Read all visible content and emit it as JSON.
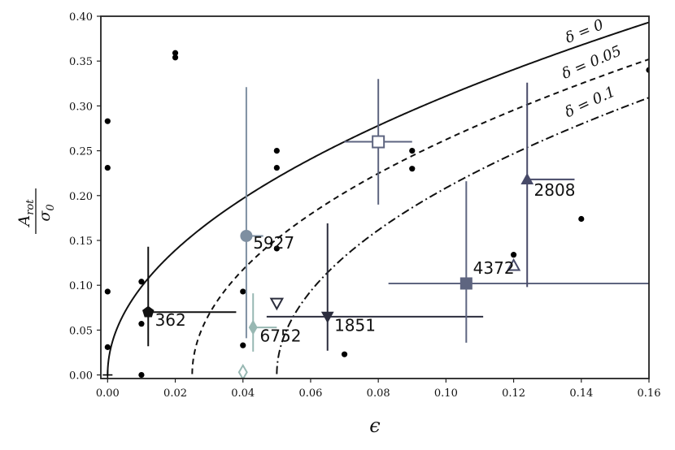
{
  "chart_data": {
    "type": "scatter",
    "xlabel": "ϵ",
    "ylabel_num": "A",
    "ylabel_num_sub": "rot",
    "ylabel_den": "σ",
    "ylabel_den_sub": "0",
    "xlim": [
      -0.002,
      0.16
    ],
    "ylim": [
      -0.004,
      0.4
    ],
    "x_ticks": [
      0.0,
      0.02,
      0.04,
      0.06,
      0.08,
      0.1,
      0.12,
      0.14,
      0.16
    ],
    "x_tick_labels": [
      "0.00",
      "0.02",
      "0.04",
      "0.06",
      "0.08",
      "0.10",
      "0.12",
      "0.14",
      "0.16"
    ],
    "y_ticks": [
      0.0,
      0.05,
      0.1,
      0.15,
      0.2,
      0.25,
      0.3,
      0.35,
      0.4
    ],
    "y_tick_labels": [
      "0.00",
      "0.05",
      "0.10",
      "0.15",
      "0.20",
      "0.25",
      "0.30",
      "0.35",
      "0.40"
    ],
    "grid": false,
    "curves": [
      {
        "label": "δ = 0",
        "delta": 0,
        "style": "solid"
      },
      {
        "label": "δ = 0.05",
        "delta": 0.05,
        "style": "dashed"
      },
      {
        "label": "δ = 0.1",
        "delta": 0.1,
        "style": "dashdot"
      }
    ],
    "scatter_points": [
      [
        0.0,
        0.283
      ],
      [
        0.0,
        0.231
      ],
      [
        0.0,
        0.093
      ],
      [
        0.0,
        0.031
      ],
      [
        0.01,
        0.104
      ],
      [
        0.01,
        0.057
      ],
      [
        0.01,
        0.0
      ],
      [
        0.02,
        0.359
      ],
      [
        0.02,
        0.354
      ],
      [
        0.04,
        0.093
      ],
      [
        0.04,
        0.033
      ],
      [
        0.05,
        0.25
      ],
      [
        0.05,
        0.231
      ],
      [
        0.05,
        0.141
      ],
      [
        0.07,
        0.023
      ],
      [
        0.09,
        0.25
      ],
      [
        0.09,
        0.23
      ],
      [
        0.12,
        0.134
      ],
      [
        0.14,
        0.174
      ],
      [
        0.16,
        0.34
      ]
    ],
    "plus_markers": [
      [
        0.0,
        0.0
      ]
    ],
    "labeled_points": [
      {
        "label": "362",
        "x": 0.012,
        "y": 0.07,
        "marker": "pentagon",
        "color": "#111111",
        "xerr": [
          0.0,
          0.026
        ],
        "yerr": [
          0.038,
          0.073
        ],
        "label_at": [
          0.014,
          0.055
        ]
      },
      {
        "label": "5927",
        "x": 0.041,
        "y": 0.155,
        "marker": "circle",
        "color": "#7e8fa1",
        "xerr": [
          0.0,
          0.005
        ],
        "yerr": [
          0.114,
          0.166
        ],
        "label_at": [
          0.043,
          0.141
        ]
      },
      {
        "label": "6752",
        "x": 0.043,
        "y": 0.053,
        "marker": "diamond",
        "color": "#98b8b3",
        "xerr": [
          0.0,
          0.007
        ],
        "yerr": [
          0.027,
          0.038
        ],
        "label_at": [
          0.045,
          0.037
        ]
      },
      {
        "label": "1851",
        "x": 0.065,
        "y": 0.065,
        "marker": "triangle_down",
        "color": "#2b2d3d",
        "xerr": [
          0.018,
          0.046
        ],
        "yerr": [
          0.038,
          0.104
        ],
        "label_at": [
          0.067,
          0.049
        ]
      },
      {
        "label": "4372",
        "x": 0.106,
        "y": 0.102,
        "marker": "square",
        "color": "#5e6580",
        "xerr": [
          0.023,
          0.054
        ],
        "yerr": [
          0.066,
          0.114
        ],
        "label_at": [
          0.108,
          0.113
        ]
      },
      {
        "label": "2808",
        "x": 0.124,
        "y": 0.218,
        "marker": "triangle_up",
        "color": "#474a68",
        "xerr": [
          0.0,
          0.014
        ],
        "yerr": [
          0.12,
          0.108
        ],
        "label_at": [
          0.126,
          0.2
        ]
      },
      {
        "label": "",
        "x": 0.08,
        "y": 0.26,
        "marker": "square_open",
        "color": "#5e6580",
        "xerr": [
          0.01,
          0.01
        ],
        "yerr": [
          0.07,
          0.07
        ]
      },
      {
        "label": "",
        "x": 0.05,
        "y": 0.08,
        "marker": "triangle_down_open",
        "color": "#2b2d3d",
        "xerr": [
          0,
          0
        ],
        "yerr": [
          0,
          0
        ]
      },
      {
        "label": "",
        "x": 0.12,
        "y": 0.122,
        "marker": "triangle_up_open",
        "color": "#474a68",
        "xerr": [
          0,
          0
        ],
        "yerr": [
          0,
          0
        ]
      },
      {
        "label": "",
        "x": 0.04,
        "y": 0.003,
        "marker": "diamond_open",
        "color": "#98b8b3",
        "xerr": [
          0,
          0
        ],
        "yerr": [
          0,
          0
        ]
      }
    ]
  }
}
